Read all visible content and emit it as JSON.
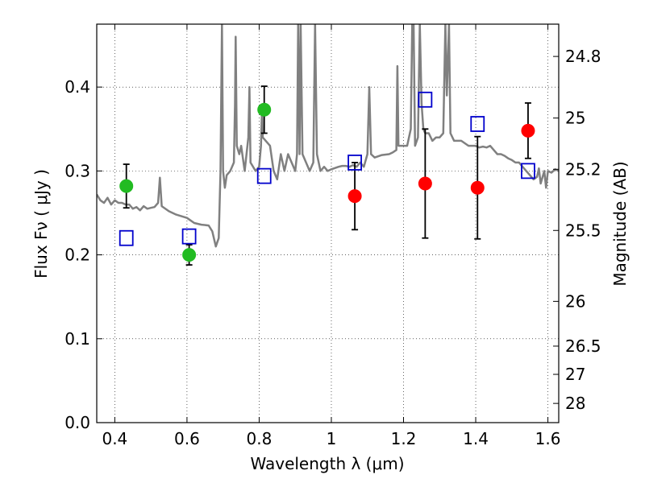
{
  "chart_data": {
    "type": "scatter",
    "xlabel": "Wavelength  λ (μm)",
    "ylabel": "Flux  Fν  ( μJy )",
    "y2label": "Magnitude (AB)",
    "xlim": [
      0.35,
      1.63
    ],
    "ylim": [
      0.0,
      0.475
    ],
    "grid": true,
    "x_ticks": [
      {
        "value": 0.4,
        "label": "0.4"
      },
      {
        "value": 0.6,
        "label": "0.6"
      },
      {
        "value": 0.8,
        "label": "0.8"
      },
      {
        "value": 1.0,
        "label": "1"
      },
      {
        "value": 1.2,
        "label": "1.2"
      },
      {
        "value": 1.4,
        "label": "1.4"
      },
      {
        "value": 1.6,
        "label": "1.6"
      }
    ],
    "y_ticks": [
      {
        "value": 0.0,
        "label": "0.0"
      },
      {
        "value": 0.1,
        "label": "0.1"
      },
      {
        "value": 0.2,
        "label": "0.2"
      },
      {
        "value": 0.3,
        "label": "0.3"
      },
      {
        "value": 0.4,
        "label": "0.4"
      }
    ],
    "magnitude_ticks": [
      {
        "value": 24.8,
        "label": "24.8"
      },
      {
        "value": 25.0,
        "label": "25"
      },
      {
        "value": 25.2,
        "label": "25.2"
      },
      {
        "value": 25.5,
        "label": "25.5"
      },
      {
        "value": 26.0,
        "label": "26"
      },
      {
        "value": 26.5,
        "label": "26.5"
      },
      {
        "value": 27.0,
        "label": "27"
      },
      {
        "value": 28.0,
        "label": "28"
      }
    ],
    "series": [
      {
        "marker": "circle",
        "color": "#22bb22",
        "points": [
          {
            "x": 0.432,
            "y": 0.282,
            "err": 0.026
          },
          {
            "x": 0.606,
            "y": 0.2,
            "err": 0.012
          },
          {
            "x": 0.814,
            "y": 0.373,
            "err": 0.028
          }
        ]
      },
      {
        "marker": "circle",
        "color": "#ff0000",
        "points": [
          {
            "x": 1.065,
            "y": 0.27,
            "err": 0.04
          },
          {
            "x": 1.26,
            "y": 0.285,
            "err": 0.065
          },
          {
            "x": 1.405,
            "y": 0.28,
            "err": 0.061
          },
          {
            "x": 1.545,
            "y": 0.348,
            "err": 0.033
          }
        ]
      },
      {
        "marker": "open-square",
        "color": "#0000cc",
        "points": [
          {
            "x": 0.432,
            "y": 0.22
          },
          {
            "x": 0.606,
            "y": 0.222
          },
          {
            "x": 0.814,
            "y": 0.294
          },
          {
            "x": 1.065,
            "y": 0.31
          },
          {
            "x": 1.26,
            "y": 0.385
          },
          {
            "x": 1.405,
            "y": 0.356
          },
          {
            "x": 1.545,
            "y": 0.3
          }
        ]
      },
      {
        "marker": "line",
        "color": "#808080",
        "points": [
          [
            0.35,
            0.272
          ],
          [
            0.36,
            0.265
          ],
          [
            0.37,
            0.262
          ],
          [
            0.38,
            0.268
          ],
          [
            0.39,
            0.26
          ],
          [
            0.4,
            0.265
          ],
          [
            0.41,
            0.262
          ],
          [
            0.42,
            0.262
          ],
          [
            0.43,
            0.26
          ],
          [
            0.44,
            0.26
          ],
          [
            0.45,
            0.255
          ],
          [
            0.46,
            0.257
          ],
          [
            0.47,
            0.253
          ],
          [
            0.48,
            0.258
          ],
          [
            0.49,
            0.255
          ],
          [
            0.5,
            0.256
          ],
          [
            0.51,
            0.257
          ],
          [
            0.52,
            0.262
          ],
          [
            0.525,
            0.292
          ],
          [
            0.53,
            0.258
          ],
          [
            0.55,
            0.252
          ],
          [
            0.57,
            0.248
          ],
          [
            0.6,
            0.244
          ],
          [
            0.62,
            0.238
          ],
          [
            0.64,
            0.236
          ],
          [
            0.66,
            0.235
          ],
          [
            0.67,
            0.228
          ],
          [
            0.68,
            0.21
          ],
          [
            0.688,
            0.22
          ],
          [
            0.693,
            0.3
          ],
          [
            0.697,
            0.475
          ],
          [
            0.7,
            0.3
          ],
          [
            0.705,
            0.28
          ],
          [
            0.71,
            0.295
          ],
          [
            0.72,
            0.3
          ],
          [
            0.73,
            0.31
          ],
          [
            0.733,
            0.38
          ],
          [
            0.735,
            0.46
          ],
          [
            0.738,
            0.33
          ],
          [
            0.745,
            0.32
          ],
          [
            0.75,
            0.33
          ],
          [
            0.76,
            0.3
          ],
          [
            0.77,
            0.34
          ],
          [
            0.773,
            0.4
          ],
          [
            0.776,
            0.31
          ],
          [
            0.79,
            0.3
          ],
          [
            0.8,
            0.305
          ],
          [
            0.805,
            0.33
          ],
          [
            0.808,
            0.375
          ],
          [
            0.81,
            0.34
          ],
          [
            0.83,
            0.33
          ],
          [
            0.84,
            0.3
          ],
          [
            0.85,
            0.29
          ],
          [
            0.86,
            0.32
          ],
          [
            0.87,
            0.3
          ],
          [
            0.88,
            0.32
          ],
          [
            0.89,
            0.31
          ],
          [
            0.9,
            0.3
          ],
          [
            0.905,
            0.32
          ],
          [
            0.908,
            0.475
          ],
          [
            0.912,
            0.32
          ],
          [
            0.915,
            0.475
          ],
          [
            0.92,
            0.32
          ],
          [
            0.93,
            0.31
          ],
          [
            0.94,
            0.3
          ],
          [
            0.95,
            0.31
          ],
          [
            0.955,
            0.475
          ],
          [
            0.96,
            0.32
          ],
          [
            0.97,
            0.3
          ],
          [
            0.98,
            0.305
          ],
          [
            0.99,
            0.3
          ],
          [
            1.0,
            0.302
          ],
          [
            1.02,
            0.305
          ],
          [
            1.03,
            0.306
          ],
          [
            1.04,
            0.306
          ],
          [
            1.05,
            0.305
          ],
          [
            1.06,
            0.307
          ],
          [
            1.07,
            0.305
          ],
          [
            1.08,
            0.31
          ],
          [
            1.09,
            0.305
          ],
          [
            1.1,
            0.32
          ],
          [
            1.105,
            0.4
          ],
          [
            1.11,
            0.32
          ],
          [
            1.12,
            0.316
          ],
          [
            1.14,
            0.319
          ],
          [
            1.16,
            0.32
          ],
          [
            1.17,
            0.322
          ],
          [
            1.18,
            0.325
          ],
          [
            1.183,
            0.425
          ],
          [
            1.186,
            0.33
          ],
          [
            1.2,
            0.33
          ],
          [
            1.21,
            0.33
          ],
          [
            1.22,
            0.35
          ],
          [
            1.224,
            0.475
          ],
          [
            1.228,
            0.475
          ],
          [
            1.232,
            0.33
          ],
          [
            1.24,
            0.34
          ],
          [
            1.245,
            0.475
          ],
          [
            1.25,
            0.38
          ],
          [
            1.255,
            0.35
          ],
          [
            1.26,
            0.345
          ],
          [
            1.27,
            0.345
          ],
          [
            1.28,
            0.336
          ],
          [
            1.29,
            0.34
          ],
          [
            1.3,
            0.34
          ],
          [
            1.31,
            0.345
          ],
          [
            1.316,
            0.475
          ],
          [
            1.32,
            0.39
          ],
          [
            1.326,
            0.475
          ],
          [
            1.33,
            0.345
          ],
          [
            1.34,
            0.336
          ],
          [
            1.36,
            0.336
          ],
          [
            1.38,
            0.33
          ],
          [
            1.39,
            0.33
          ],
          [
            1.4,
            0.33
          ],
          [
            1.41,
            0.328
          ],
          [
            1.42,
            0.329
          ],
          [
            1.43,
            0.328
          ],
          [
            1.44,
            0.33
          ],
          [
            1.45,
            0.325
          ],
          [
            1.46,
            0.32
          ],
          [
            1.47,
            0.32
          ],
          [
            1.48,
            0.318
          ],
          [
            1.49,
            0.315
          ],
          [
            1.5,
            0.313
          ],
          [
            1.51,
            0.31
          ],
          [
            1.52,
            0.31
          ],
          [
            1.53,
            0.305
          ],
          [
            1.54,
            0.3
          ],
          [
            1.55,
            0.295
          ],
          [
            1.56,
            0.29
          ],
          [
            1.57,
            0.293
          ],
          [
            1.575,
            0.303
          ],
          [
            1.58,
            0.285
          ],
          [
            1.59,
            0.3
          ],
          [
            1.595,
            0.28
          ],
          [
            1.6,
            0.3
          ],
          [
            1.61,
            0.298
          ],
          [
            1.62,
            0.302
          ],
          [
            1.63,
            0.3
          ]
        ]
      }
    ]
  }
}
